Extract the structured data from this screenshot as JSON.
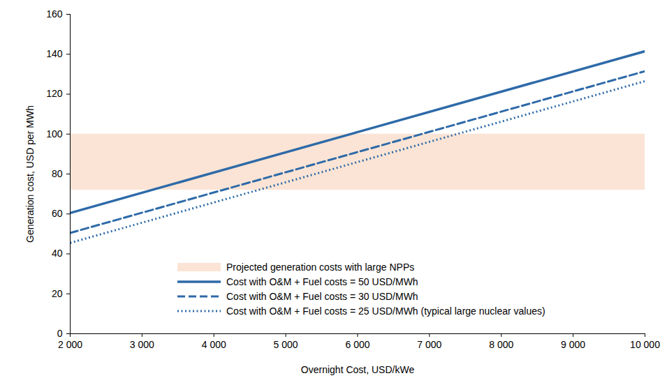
{
  "chart_data": {
    "type": "line",
    "x_label": "Overnight Cost, USD/kWe",
    "y_label": "Generation cost, USD per MWh",
    "x": [
      2000,
      10000
    ],
    "series": [
      {
        "name": "Projected generation costs with large NPPs",
        "type": "area",
        "color": "#fbe4d5",
        "low": [
          72,
          72
        ],
        "values": [
          100,
          100
        ]
      },
      {
        "name": "Cost with O&M + Fuel costs = 50 USD/MWh",
        "color": "#2e6aa8",
        "line_style": "solid",
        "values": [
          60.5,
          141.5
        ]
      },
      {
        "name": "Cost with O&M + Fuel costs = 30 USD/MWh",
        "color": "#2e6aa8",
        "line_style": "dashed",
        "values": [
          50.5,
          131.5
        ]
      },
      {
        "name": "Cost with O&M + Fuel costs = 25 USD/MWh (typical large nuclear values)",
        "color": "#2e6aa8",
        "line_style": "dotted",
        "values": [
          45.5,
          126.5
        ]
      }
    ],
    "xlim": [
      2000,
      10000
    ],
    "xticks": [
      {
        "value": 2000,
        "label": "2 000"
      },
      {
        "value": 3000,
        "label": "3 000"
      },
      {
        "value": 4000,
        "label": "4 000"
      },
      {
        "value": 5000,
        "label": "5 000"
      },
      {
        "value": 6000,
        "label": "6 000"
      },
      {
        "value": 7000,
        "label": "7 000"
      },
      {
        "value": 8000,
        "label": "8 000"
      },
      {
        "value": 9000,
        "label": "9 000"
      },
      {
        "value": 10000,
        "label": "10 000"
      }
    ],
    "ylim": [
      0,
      160
    ],
    "yticks": [
      0,
      20,
      40,
      60,
      80,
      100,
      120,
      140,
      160
    ],
    "grid": false,
    "legend": "bottom"
  }
}
